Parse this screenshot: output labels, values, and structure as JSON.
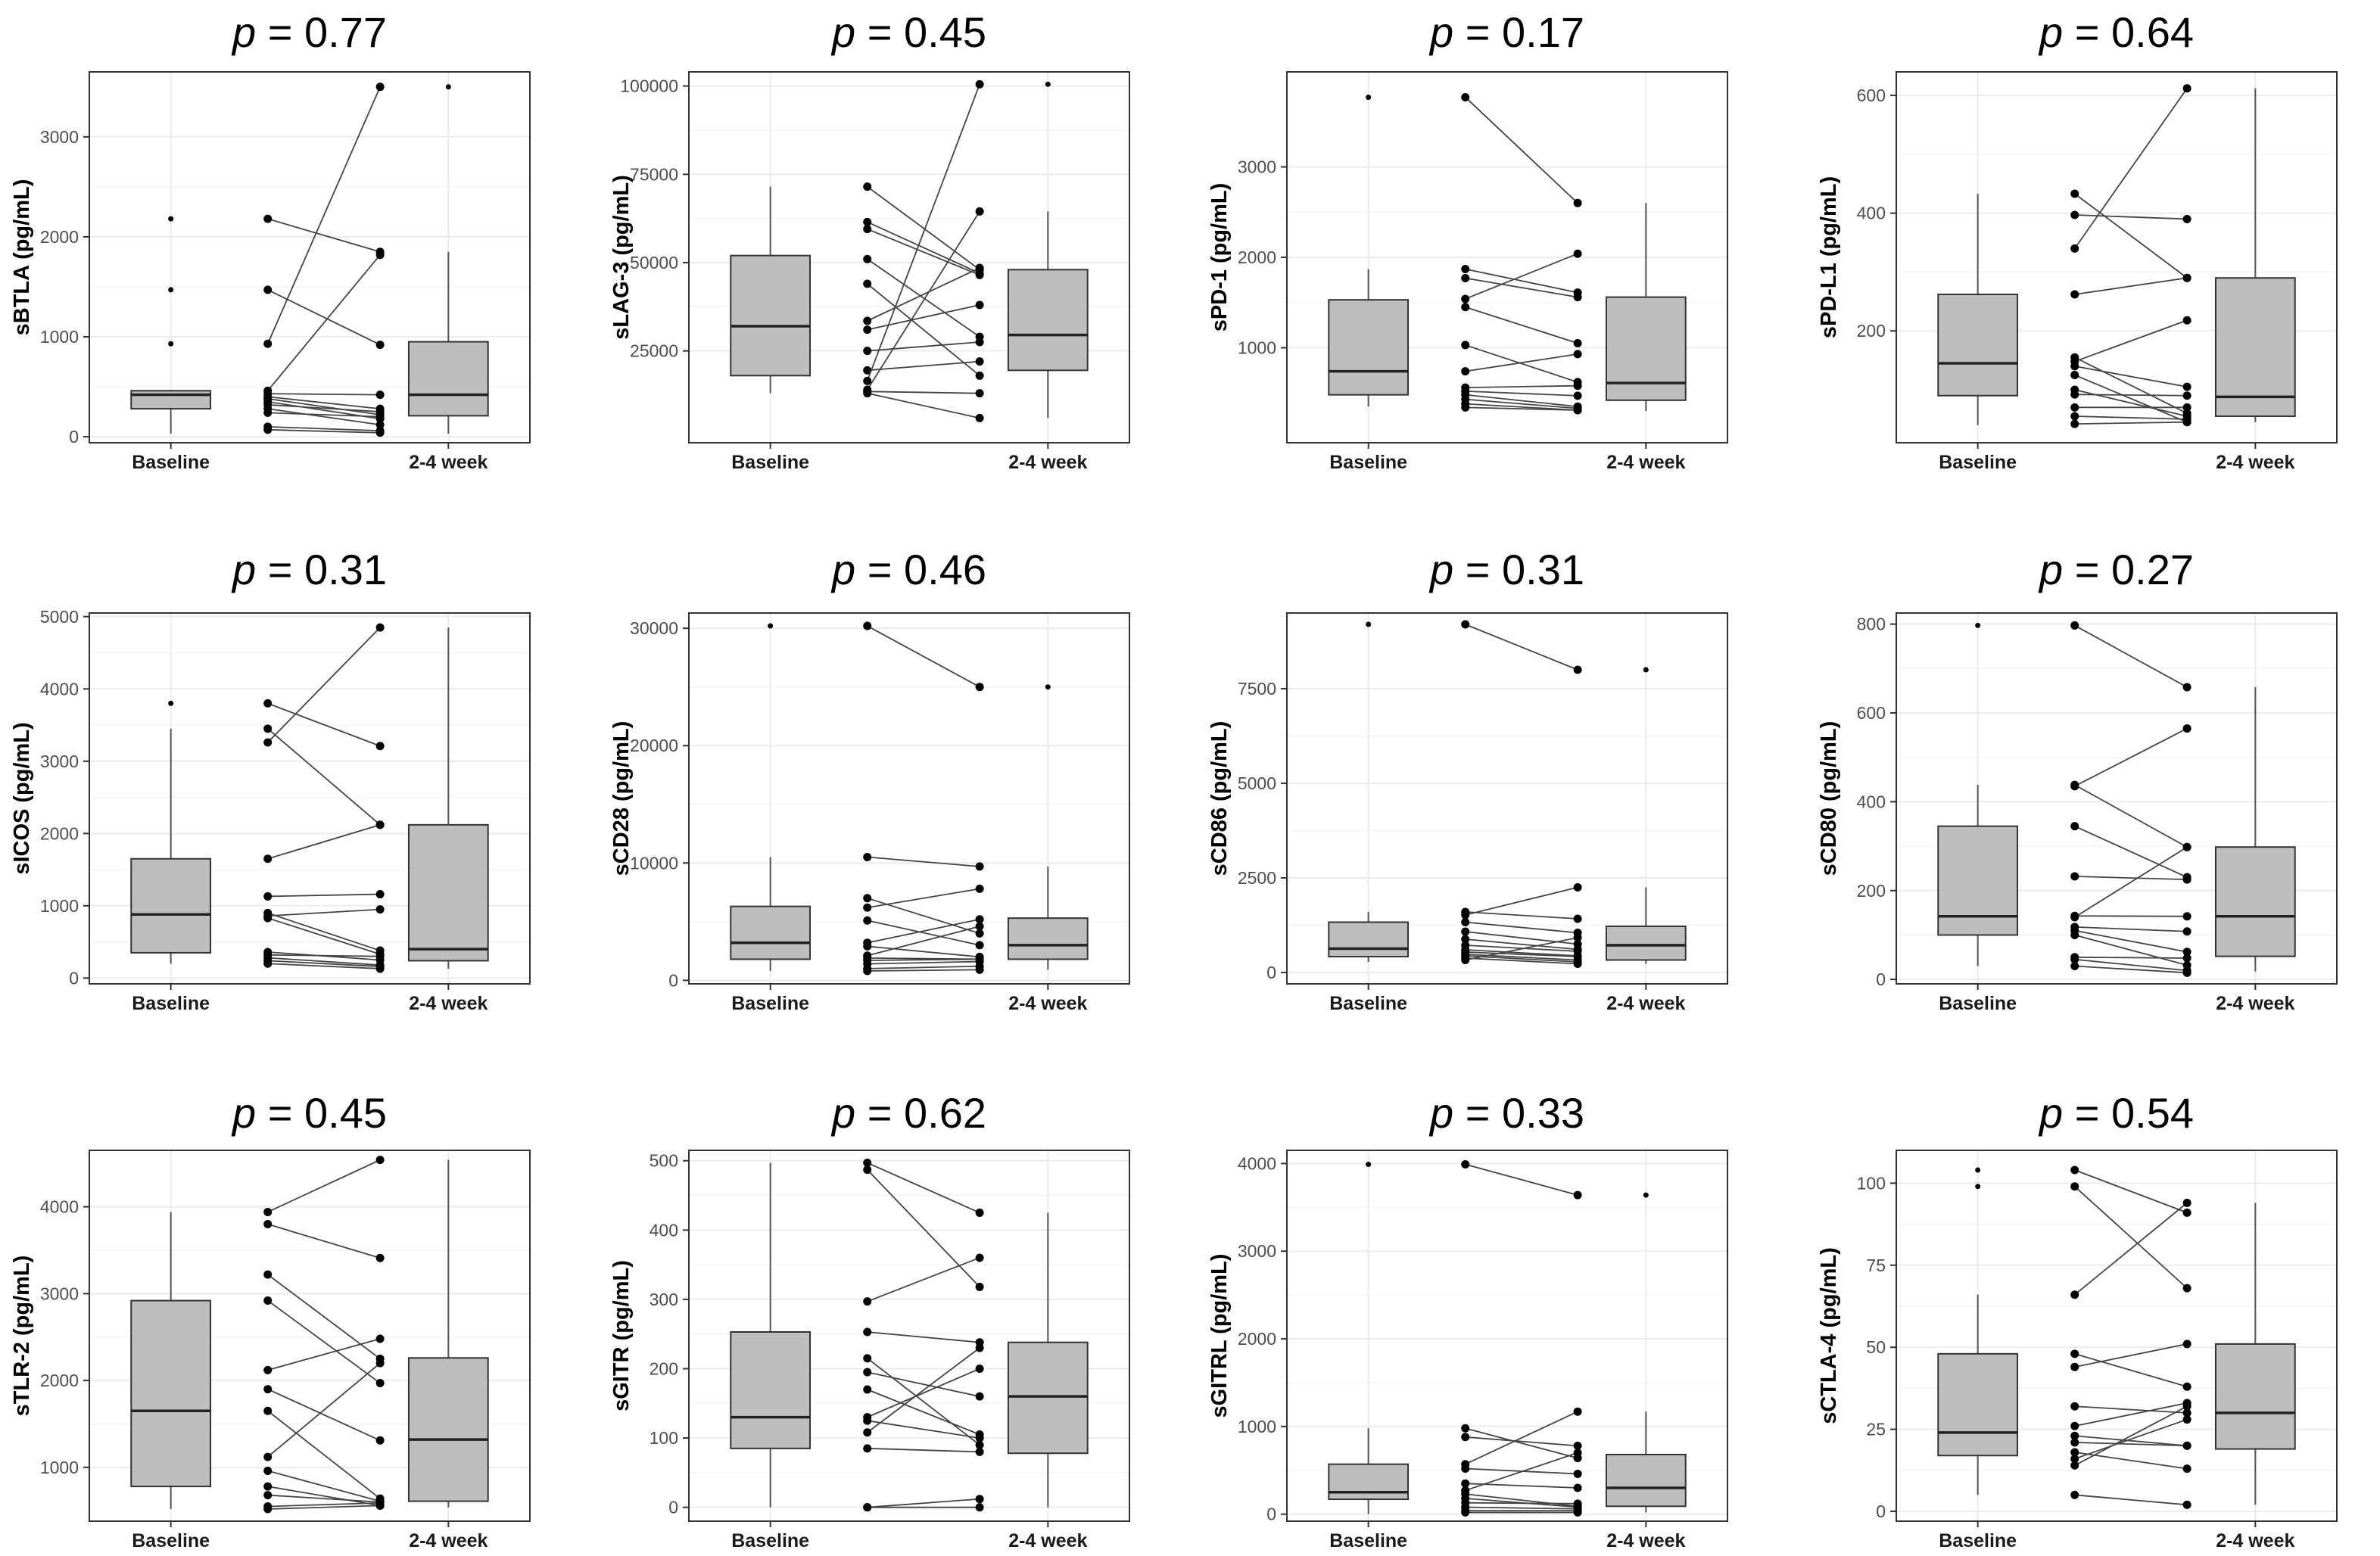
{
  "chart_data": [
    {
      "type": "box-paired",
      "title": "p = 0.77",
      "p_label": "p",
      "p_value": "= 0.77",
      "ylabel": "sBTLA (pg/mL)",
      "categories": [
        "Baseline",
        "2-4 week"
      ],
      "ylim": [
        -60,
        3650
      ],
      "yticks": [
        0,
        1000,
        2000,
        3000
      ],
      "tick_labels": [
        "0",
        "1000",
        "2000",
        "3000"
      ],
      "box": [
        {
          "q1": 280,
          "median": 420,
          "q3": 460,
          "whislo": 30,
          "whishi": 460,
          "outliers": [
            930,
            1470,
            2180
          ]
        },
        {
          "q1": 210,
          "median": 420,
          "q3": 950,
          "whislo": 30,
          "whishi": 1850,
          "outliers": [
            3500
          ]
        }
      ],
      "pairs": [
        [
          2180,
          1850
        ],
        [
          1470,
          920
        ],
        [
          930,
          3500
        ],
        [
          460,
          1820
        ],
        [
          430,
          420
        ],
        [
          400,
          280
        ],
        [
          380,
          220
        ],
        [
          350,
          180
        ],
        [
          320,
          250
        ],
        [
          280,
          120
        ],
        [
          240,
          200
        ],
        [
          100,
          60
        ],
        [
          70,
          40
        ]
      ]
    },
    {
      "type": "box-paired",
      "title": "p = 0.45",
      "p_label": "p",
      "p_value": "= 0.45",
      "ylabel": "sLAG-3 (pg/mL)",
      "categories": [
        "Baseline",
        "2-4 week"
      ],
      "ylim": [
        -1000,
        104000
      ],
      "yticks": [
        25000,
        50000,
        75000,
        100000
      ],
      "tick_labels": [
        "25000",
        "50000",
        "75000",
        "100000"
      ],
      "box": [
        {
          "q1": 18000,
          "median": 32000,
          "q3": 52000,
          "whislo": 13000,
          "whishi": 71500,
          "outliers": []
        },
        {
          "q1": 19500,
          "median": 29500,
          "q3": 48000,
          "whislo": 6000,
          "whishi": 64500,
          "outliers": [
            100500
          ]
        }
      ],
      "pairs": [
        [
          71500,
          48000
        ],
        [
          61500,
          47000
        ],
        [
          59500,
          46500
        ],
        [
          51000,
          29000
        ],
        [
          44000,
          18000
        ],
        [
          33500,
          48500
        ],
        [
          31000,
          38000
        ],
        [
          25000,
          27500
        ],
        [
          19500,
          22000
        ],
        [
          16500,
          100500
        ],
        [
          14000,
          64500
        ],
        [
          13500,
          13000
        ],
        [
          13000,
          6000
        ]
      ]
    },
    {
      "type": "box-paired",
      "title": "p = 0.17",
      "p_label": "p",
      "p_value": "= 0.17",
      "ylabel": "sPD-1 (pg/mL)",
      "categories": [
        "Baseline",
        "2-4 week"
      ],
      "ylim": [
        -50,
        4050
      ],
      "yticks": [
        1000,
        2000,
        3000
      ],
      "tick_labels": [
        "1000",
        "2000",
        "3000"
      ],
      "box": [
        {
          "q1": 480,
          "median": 740,
          "q3": 1530,
          "whislo": 350,
          "whishi": 1870,
          "outliers": [
            3770
          ]
        },
        {
          "q1": 420,
          "median": 610,
          "q3": 1560,
          "whislo": 300,
          "whishi": 2600,
          "outliers": []
        }
      ],
      "pairs": [
        [
          3770,
          2600
        ],
        [
          1870,
          1610
        ],
        [
          1770,
          1560
        ],
        [
          1540,
          2040
        ],
        [
          1450,
          1050
        ],
        [
          1030,
          620
        ],
        [
          740,
          930
        ],
        [
          560,
          580
        ],
        [
          520,
          470
        ],
        [
          480,
          350
        ],
        [
          430,
          330
        ],
        [
          380,
          310
        ],
        [
          340,
          310
        ]
      ]
    },
    {
      "type": "box-paired",
      "title": "p = 0.64",
      "p_label": "p",
      "p_value": "= 0.64",
      "ylabel": "sPD-L1 (pg/mL)",
      "categories": [
        "Baseline",
        "2-4 week"
      ],
      "ylim": [
        10,
        640
      ],
      "yticks": [
        200,
        400,
        600
      ],
      "tick_labels": [
        "200",
        "400",
        "600"
      ],
      "box": [
        {
          "q1": 90,
          "median": 145,
          "q3": 262,
          "whislo": 40,
          "whishi": 433,
          "outliers": []
        },
        {
          "q1": 55,
          "median": 88,
          "q3": 290,
          "whislo": 45,
          "whishi": 612,
          "outliers": []
        }
      ],
      "pairs": [
        [
          433,
          290
        ],
        [
          397,
          390
        ],
        [
          340,
          612
        ],
        [
          262,
          290
        ],
        [
          155,
          60
        ],
        [
          148,
          218
        ],
        [
          140,
          105
        ],
        [
          125,
          45
        ],
        [
          100,
          55
        ],
        [
          92,
          90
        ],
        [
          70,
          70
        ],
        [
          55,
          50
        ],
        [
          42,
          45
        ]
      ]
    },
    {
      "type": "box-paired",
      "title": "p = 0.31",
      "p_label": "p",
      "p_value": "= 0.31",
      "ylabel": "sICOS (pg/mL)",
      "categories": [
        "Baseline",
        "2-4 week"
      ],
      "ylim": [
        -80,
        5050
      ],
      "yticks": [
        0,
        1000,
        2000,
        3000,
        4000,
        5000
      ],
      "tick_labels": [
        "0",
        "1000",
        "2000",
        "3000",
        "4000",
        "5000"
      ],
      "box": [
        {
          "q1": 350,
          "median": 880,
          "q3": 1650,
          "whislo": 200,
          "whishi": 3450,
          "outliers": [
            3800
          ]
        },
        {
          "q1": 240,
          "median": 400,
          "q3": 2120,
          "whislo": 130,
          "whishi": 4850,
          "outliers": []
        }
      ],
      "pairs": [
        [
          3800,
          3210
        ],
        [
          3450,
          2120
        ],
        [
          3260,
          4850
        ],
        [
          1650,
          2120
        ],
        [
          1130,
          1160
        ],
        [
          900,
          380
        ],
        [
          860,
          950
        ],
        [
          830,
          330
        ],
        [
          360,
          250
        ],
        [
          320,
          300
        ],
        [
          280,
          180
        ],
        [
          240,
          160
        ],
        [
          200,
          130
        ]
      ]
    },
    {
      "type": "box-paired",
      "title": "p = 0.46",
      "p_label": "p",
      "p_value": "= 0.46",
      "ylabel": "sCD28 (pg/mL)",
      "categories": [
        "Baseline",
        "2-4 week"
      ],
      "ylim": [
        -300,
        31300
      ],
      "yticks": [
        0,
        10000,
        20000,
        30000
      ],
      "tick_labels": [
        "0",
        "10000",
        "20000",
        "30000"
      ],
      "box": [
        {
          "q1": 1800,
          "median": 3200,
          "q3": 6300,
          "whislo": 800,
          "whishi": 10500,
          "outliers": [
            30200
          ]
        },
        {
          "q1": 1800,
          "median": 3000,
          "q3": 5300,
          "whislo": 900,
          "whishi": 9700,
          "outliers": [
            25000
          ]
        }
      ],
      "pairs": [
        [
          30200,
          25000
        ],
        [
          10500,
          9700
        ],
        [
          7000,
          4000
        ],
        [
          6200,
          7800
        ],
        [
          5100,
          3000
        ],
        [
          3200,
          5200
        ],
        [
          2900,
          2000
        ],
        [
          2100,
          4600
        ],
        [
          1900,
          1800
        ],
        [
          1700,
          1800
        ],
        [
          1400,
          1600
        ],
        [
          1000,
          1200
        ],
        [
          800,
          900
        ]
      ]
    },
    {
      "type": "box-paired",
      "title": "p = 0.31",
      "p_label": "p",
      "p_value": "= 0.31",
      "ylabel": "sCD86 (pg/mL)",
      "categories": [
        "Baseline",
        "2-4 week"
      ],
      "ylim": [
        -300,
        9500
      ],
      "yticks": [
        0,
        2500,
        5000,
        7500
      ],
      "tick_labels": [
        "0",
        "2500",
        "5000",
        "7500"
      ],
      "box": [
        {
          "q1": 420,
          "median": 630,
          "q3": 1330,
          "whislo": 280,
          "whishi": 1600,
          "outliers": [
            9200
          ]
        },
        {
          "q1": 330,
          "median": 720,
          "q3": 1220,
          "whislo": 230,
          "whishi": 2250,
          "outliers": [
            8000
          ]
        }
      ],
      "pairs": [
        [
          9200,
          8000
        ],
        [
          1600,
          1420
        ],
        [
          1520,
          2250
        ],
        [
          1330,
          1050
        ],
        [
          1080,
          750
        ],
        [
          880,
          610
        ],
        [
          720,
          560
        ],
        [
          600,
          440
        ],
        [
          540,
          420
        ],
        [
          480,
          330
        ],
        [
          440,
          280
        ],
        [
          380,
          230
        ],
        [
          330,
          920
        ]
      ]
    },
    {
      "type": "box-paired",
      "title": "p = 0.27",
      "p_label": "p",
      "p_value": "= 0.27",
      "ylabel": "sCD80 (pg/mL)",
      "categories": [
        "Baseline",
        "2-4 week"
      ],
      "ylim": [
        -10,
        825
      ],
      "yticks": [
        0,
        200,
        400,
        600,
        800
      ],
      "tick_labels": [
        "0",
        "200",
        "400",
        "600",
        "800"
      ],
      "box": [
        {
          "q1": 100,
          "median": 142,
          "q3": 345,
          "whislo": 30,
          "whishi": 438,
          "outliers": [
            797
          ]
        },
        {
          "q1": 52,
          "median": 142,
          "q3": 298,
          "whislo": 18,
          "whishi": 658,
          "outliers": []
        }
      ],
      "pairs": [
        [
          797,
          658
        ],
        [
          438,
          298
        ],
        [
          435,
          565
        ],
        [
          345,
          230
        ],
        [
          232,
          225
        ],
        [
          143,
          142
        ],
        [
          140,
          298
        ],
        [
          118,
          108
        ],
        [
          110,
          62
        ],
        [
          100,
          32
        ],
        [
          50,
          48
        ],
        [
          45,
          20
        ],
        [
          30,
          15
        ]
      ]
    },
    {
      "type": "box-paired",
      "title": "p = 0.45",
      "p_label": "p",
      "p_value": "= 0.45",
      "ylabel": "sTLR-2 (pg/mL)",
      "categories": [
        "Baseline",
        "2-4 week"
      ],
      "ylim": [
        380,
        4650
      ],
      "yticks": [
        1000,
        2000,
        3000,
        4000
      ],
      "tick_labels": [
        "1000",
        "2000",
        "3000",
        "4000"
      ],
      "box": [
        {
          "q1": 780,
          "median": 1650,
          "q3": 2920,
          "whislo": 520,
          "whishi": 3940,
          "outliers": []
        },
        {
          "q1": 610,
          "median": 1320,
          "q3": 2260,
          "whislo": 540,
          "whishi": 4540,
          "outliers": []
        }
      ],
      "pairs": [
        [
          3940,
          4540
        ],
        [
          3800,
          3410
        ],
        [
          3220,
          2250
        ],
        [
          2920,
          1970
        ],
        [
          2120,
          2480
        ],
        [
          1900,
          1310
        ],
        [
          1650,
          640
        ],
        [
          1120,
          2200
        ],
        [
          960,
          610
        ],
        [
          780,
          560
        ],
        [
          680,
          600
        ],
        [
          550,
          590
        ],
        [
          520,
          560
        ]
      ]
    },
    {
      "type": "box-paired",
      "title": "p = 0.62",
      "p_label": "p",
      "p_value": "= 0.62",
      "ylabel": "sGITR (pg/mL)",
      "categories": [
        "Baseline",
        "2-4 week"
      ],
      "ylim": [
        -20,
        515
      ],
      "yticks": [
        0,
        100,
        200,
        300,
        400,
        500
      ],
      "tick_labels": [
        "0",
        "100",
        "200",
        "300",
        "400",
        "500"
      ],
      "box": [
        {
          "q1": 85,
          "median": 130,
          "q3": 253,
          "whislo": 0,
          "whishi": 497,
          "outliers": []
        },
        {
          "q1": 78,
          "median": 160,
          "q3": 238,
          "whislo": 0,
          "whishi": 425,
          "outliers": []
        }
      ],
      "pairs": [
        [
          497,
          425
        ],
        [
          487,
          318
        ],
        [
          297,
          360
        ],
        [
          253,
          238
        ],
        [
          215,
          90
        ],
        [
          195,
          160
        ],
        [
          170,
          105
        ],
        [
          130,
          200
        ],
        [
          125,
          100
        ],
        [
          108,
          230
        ],
        [
          85,
          80
        ],
        [
          0,
          12
        ],
        [
          0,
          0
        ]
      ]
    },
    {
      "type": "box-paired",
      "title": "p = 0.33",
      "p_label": "p",
      "p_value": "= 0.33",
      "ylabel": "sGITRL (pg/mL)",
      "categories": [
        "Baseline",
        "2-4 week"
      ],
      "ylim": [
        -80,
        4150
      ],
      "yticks": [
        0,
        1000,
        2000,
        3000,
        4000
      ],
      "tick_labels": [
        "0",
        "1000",
        "2000",
        "3000",
        "4000"
      ],
      "box": [
        {
          "q1": 170,
          "median": 250,
          "q3": 570,
          "whislo": 0,
          "whishi": 980,
          "outliers": [
            3990
          ]
        },
        {
          "q1": 90,
          "median": 300,
          "q3": 680,
          "whislo": 20,
          "whishi": 1170,
          "outliers": [
            3640
          ]
        }
      ],
      "pairs": [
        [
          3990,
          3640
        ],
        [
          980,
          640
        ],
        [
          880,
          780
        ],
        [
          570,
          1170
        ],
        [
          520,
          460
        ],
        [
          350,
          300
        ],
        [
          270,
          700
        ],
        [
          230,
          90
        ],
        [
          180,
          80
        ],
        [
          130,
          120
        ],
        [
          80,
          60
        ],
        [
          40,
          40
        ],
        [
          20,
          20
        ]
      ]
    },
    {
      "type": "box-paired",
      "title": "p = 0.54",
      "p_label": "p",
      "p_value": "= 0.54",
      "ylabel": "sCTLA-4 (pg/mL)",
      "categories": [
        "Baseline",
        "2-4 week"
      ],
      "ylim": [
        -3,
        110
      ],
      "yticks": [
        0,
        25,
        50,
        75,
        100
      ],
      "tick_labels": [
        "0",
        "25",
        "50",
        "75",
        "100"
      ],
      "box": [
        {
          "q1": 17,
          "median": 24,
          "q3": 48,
          "whislo": 5,
          "whishi": 66,
          "outliers": [
            99,
            104
          ]
        },
        {
          "q1": 19,
          "median": 30,
          "q3": 51,
          "whislo": 2,
          "whishi": 94,
          "outliers": []
        }
      ],
      "pairs": [
        [
          104,
          91
        ],
        [
          99,
          68
        ],
        [
          66,
          94
        ],
        [
          48,
          38
        ],
        [
          44,
          51
        ],
        [
          32,
          30
        ],
        [
          26,
          33
        ],
        [
          23,
          20
        ],
        [
          21,
          20
        ],
        [
          18,
          13
        ],
        [
          16,
          28
        ],
        [
          14,
          32
        ],
        [
          5,
          2
        ]
      ]
    }
  ]
}
